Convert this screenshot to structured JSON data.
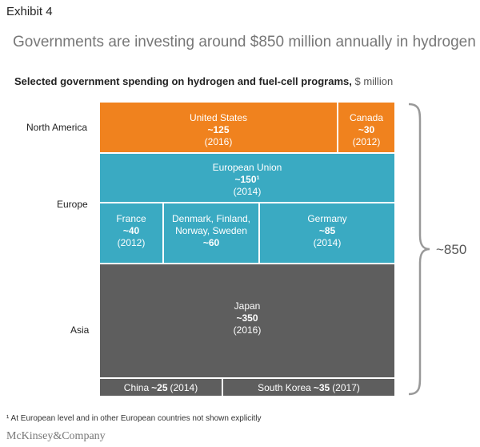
{
  "exhibit_label": "Exhibit 4",
  "headline": "Governments are investing around $850 million annually in hydrogen",
  "subtitle": {
    "main": "Selected government spending on hydrogen and fuel-cell programs,",
    "unit": "$ million"
  },
  "total_label": "~850",
  "footnote": "¹ At European level and in other European countries not shown explicitly",
  "logo": "McKinsey&Company",
  "colors": {
    "north_america": "#F0821E",
    "europe": "#3AAAC2",
    "asia": "#5E5E5E"
  },
  "chart_data": {
    "type": "table",
    "regions": [
      "North America",
      "Europe",
      "Asia"
    ],
    "entries": [
      {
        "region": "North America",
        "name": "United States",
        "value": 125,
        "value_label": "~125",
        "year": "(2016)"
      },
      {
        "region": "North America",
        "name": "Canada",
        "value": 30,
        "value_label": "~30",
        "year": "(2012)"
      },
      {
        "region": "Europe",
        "name": "European Union",
        "value": 150,
        "value_label": "~150¹",
        "year": "(2014)"
      },
      {
        "region": "Europe",
        "name": "France",
        "value": 40,
        "value_label": "~40",
        "year": "(2012)"
      },
      {
        "region": "Europe",
        "name": "Denmark, Finland, Norway, Sweden",
        "name_lines": [
          "Denmark, Finland,",
          "Norway, Sweden"
        ],
        "value": 60,
        "value_label": "~60",
        "year": ""
      },
      {
        "region": "Europe",
        "name": "Germany",
        "value": 85,
        "value_label": "~85",
        "year": "(2014)"
      },
      {
        "region": "Asia",
        "name": "Japan",
        "value": 350,
        "value_label": "~350",
        "year": "(2016)"
      },
      {
        "region": "Asia",
        "name": "China",
        "value": 25,
        "value_label": "~25",
        "year": "(2014)"
      },
      {
        "region": "Asia",
        "name": "South Korea",
        "value": 35,
        "value_label": "~35",
        "year": "(2017)"
      }
    ],
    "total": 850
  }
}
